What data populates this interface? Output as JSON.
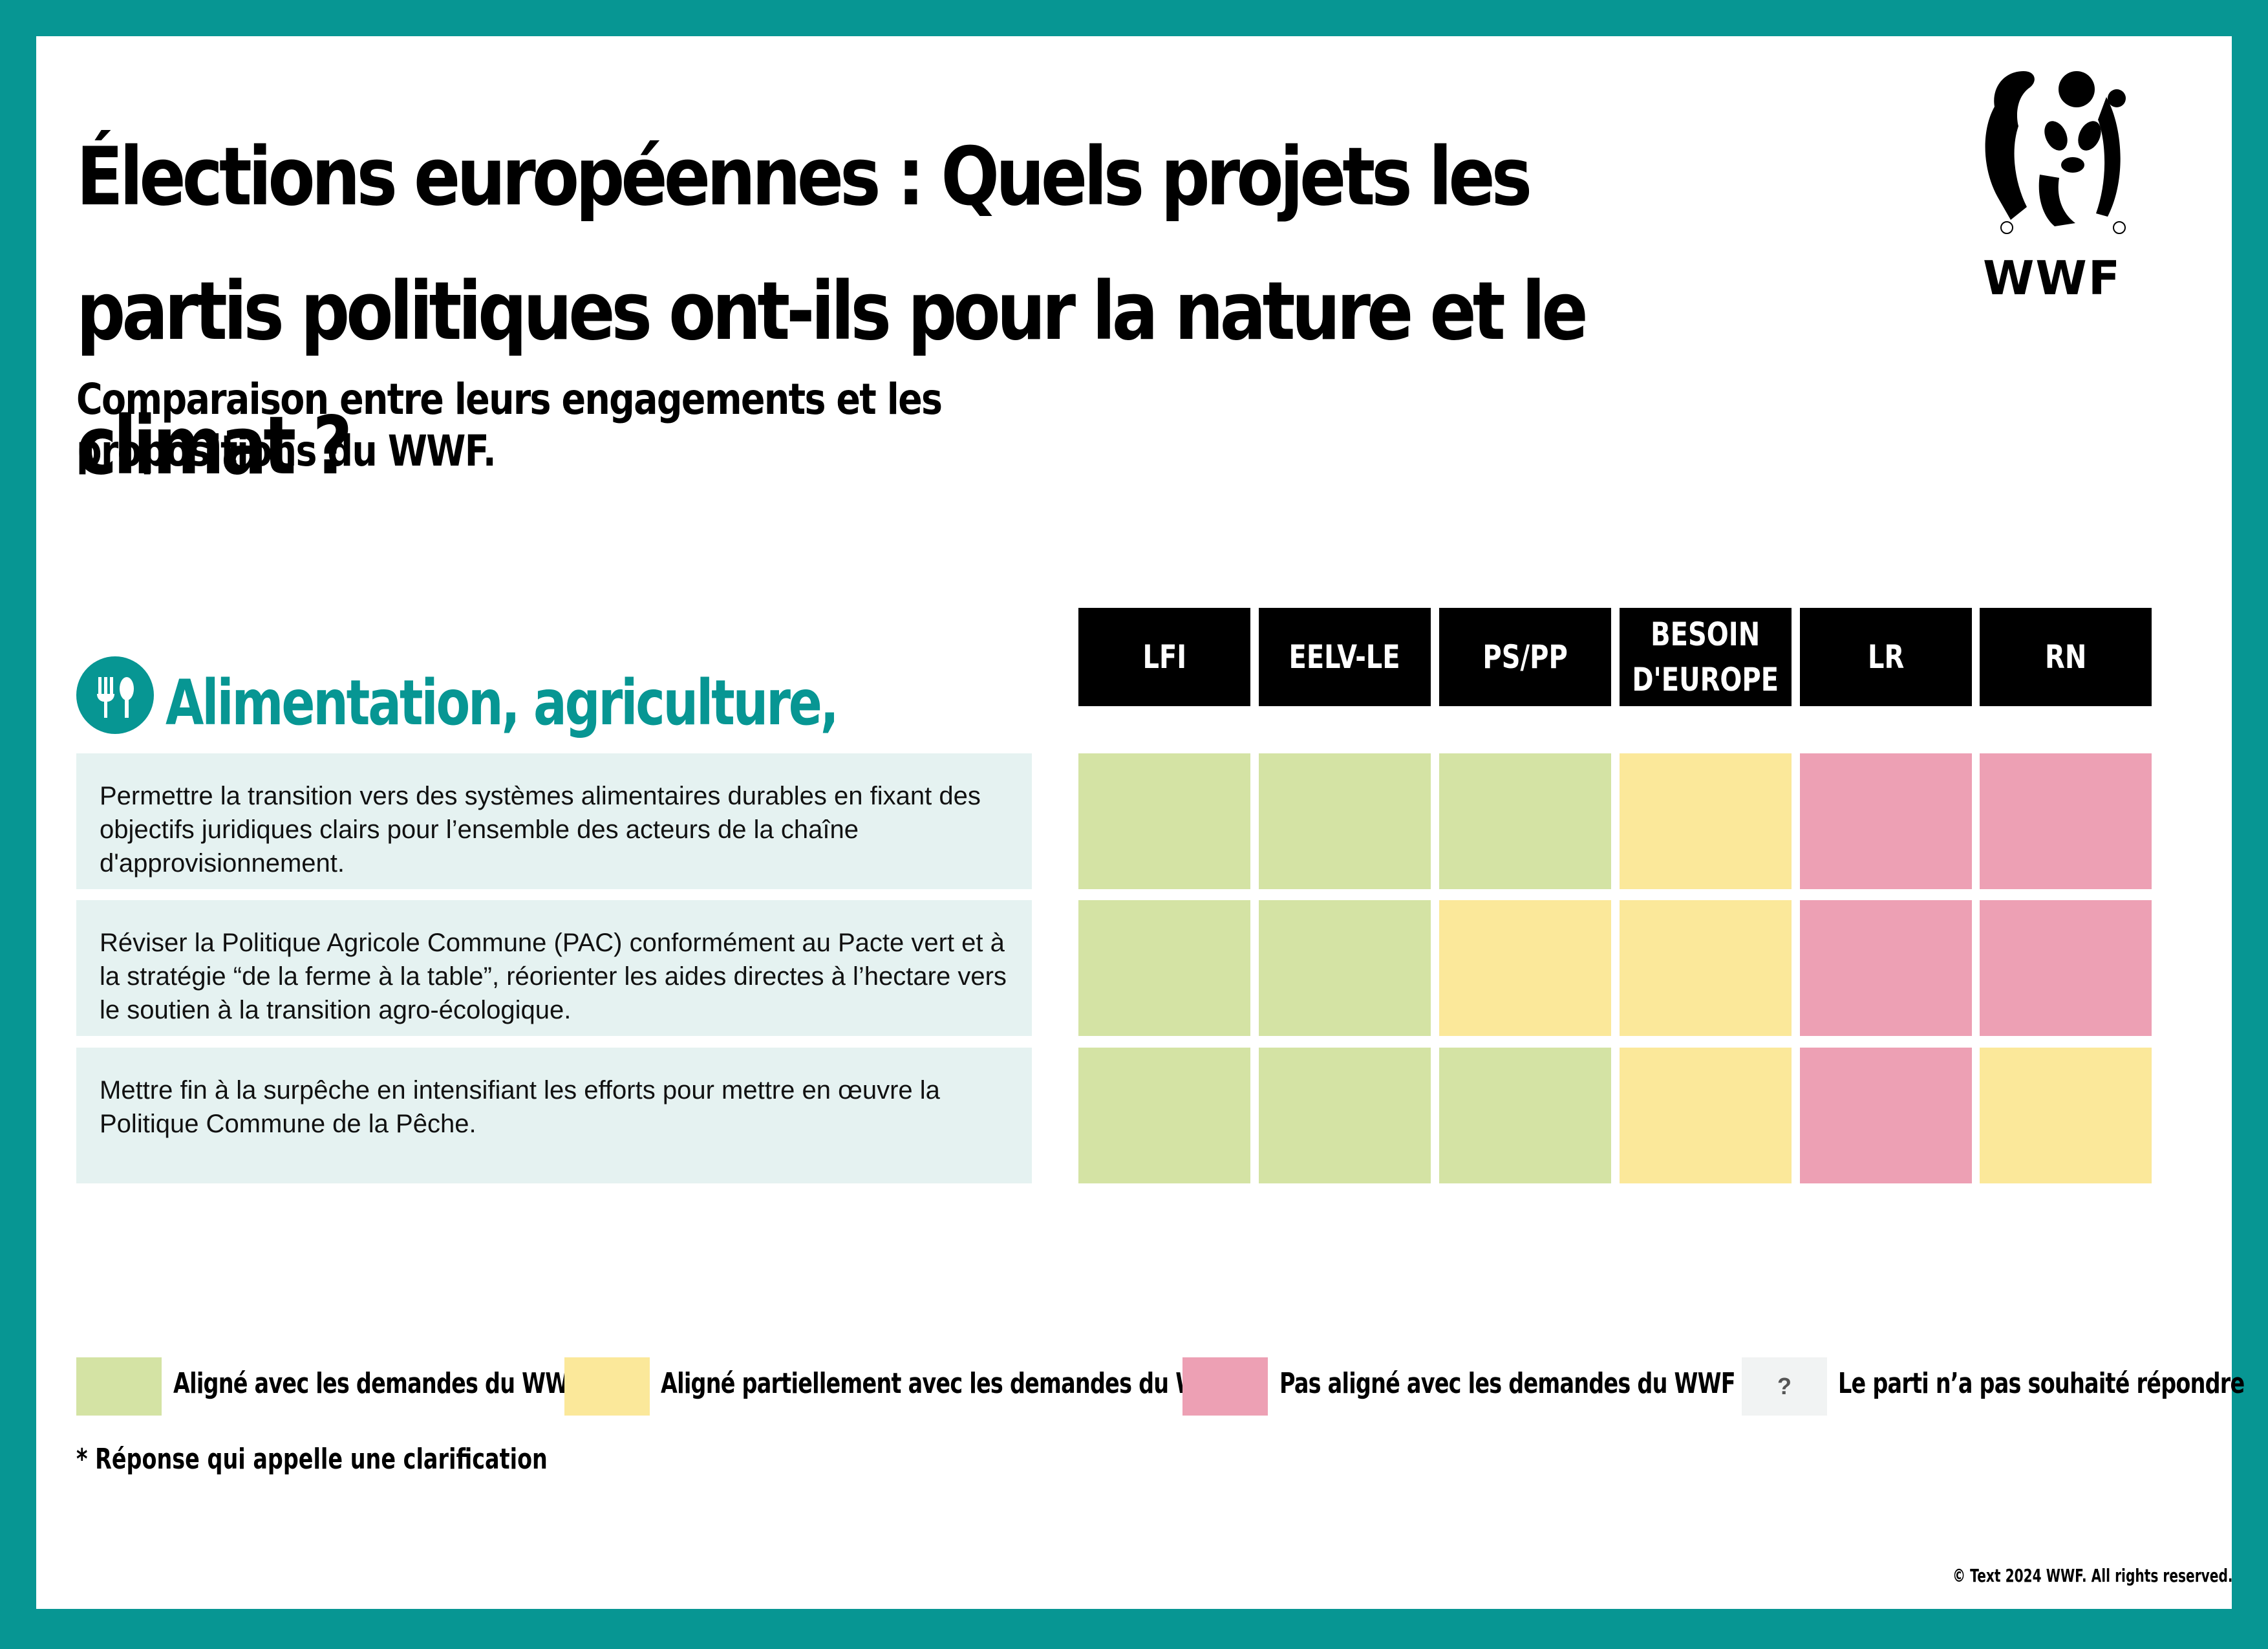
{
  "header": {
    "title": "Élections européennes : Quels projets les partis politiques ont-ils pour la nature et le climat ?",
    "subtitle": "Comparaison entre leurs engagements et les propositions du WWF.",
    "logo_text": "WWF",
    "logo_icon": "panda-logo-icon"
  },
  "section": {
    "title": "Alimentation, agriculture, pêche",
    "icon": "fork-knife-spoon-icon"
  },
  "parties": [
    "LFI",
    "EELV-LE",
    "PS/PP",
    "BESOIN\nD'EUROPE",
    "LR",
    "RN"
  ],
  "rows": [
    {
      "text": "Permettre la transition vers des systèmes alimentaires durables en fixant des objectifs juridiques clairs pour l’ensemble des acteurs de la chaîne d'approvisionnement.",
      "ratings": [
        "aligned",
        "aligned",
        "aligned",
        "partial",
        "not_aligned",
        "not_aligned"
      ]
    },
    {
      "text": "Réviser la Politique Agricole Commune (PAC) conformément au Pacte vert et à la stratégie “de la ferme à la table”, réorienter les aides directes à l’hectare vers le soutien à la transition agro-écologique.",
      "ratings": [
        "aligned",
        "aligned",
        "partial",
        "partial",
        "not_aligned",
        "not_aligned"
      ]
    },
    {
      "text": "Mettre fin à la surpêche en intensifiant les efforts pour mettre en œuvre la Politique Commune de la Pêche.",
      "ratings": [
        "aligned",
        "aligned",
        "aligned",
        "partial",
        "not_aligned",
        "partial"
      ]
    }
  ],
  "rating_colors": {
    "aligned": "#d4e3a4",
    "partial": "#fbe89a",
    "not_aligned": "#eda0b4",
    "no_answer": "#f1f3f3"
  },
  "legend": [
    {
      "key": "aligned",
      "label": "Aligné avec les demandes du WWF"
    },
    {
      "key": "partial",
      "label": "Aligné partiellement avec les demandes du WWF"
    },
    {
      "key": "not_aligned",
      "label": "Pas aligné avec les demandes du WWF"
    },
    {
      "key": "no_answer",
      "symbol": "?",
      "label": "Le parti n’a pas souhaité répondre"
    }
  ],
  "footnote": "* Réponse qui appelle une clarification",
  "copyright": "© Text 2024 WWF. All rights reserved."
}
